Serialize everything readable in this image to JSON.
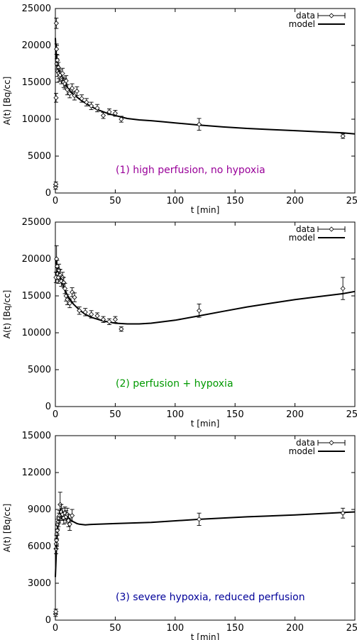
{
  "chart_data": [
    {
      "type": "scatter",
      "xlabel": "t [min]",
      "ylabel": "A(t) [Bq/cc]",
      "xlim": [
        0,
        250
      ],
      "ylim": [
        0,
        25000
      ],
      "xticks": [
        0,
        50,
        100,
        150,
        200,
        250
      ],
      "xtick_labels": [
        "0",
        "50",
        "100",
        "150",
        "200",
        "250"
      ],
      "yticks": [
        0,
        5000,
        10000,
        15000,
        20000,
        25000
      ],
      "ytick_labels": [
        "0",
        "5000",
        "10000",
        "15000",
        "20000",
        "25000"
      ],
      "legend": {
        "position": "top-right",
        "entries": [
          "data",
          "model"
        ]
      },
      "annotation": {
        "text": "(1) high perfusion, no hypoxia",
        "color": "#990099"
      },
      "series": [
        {
          "name": "data",
          "style": "points-with-errorbars",
          "x": [
            0.2,
            0.4,
            0.6,
            0.8,
            1.0,
            1.3,
            1.6,
            2.0,
            2.5,
            3,
            3.5,
            4,
            5,
            6,
            7,
            8,
            9,
            10,
            12,
            14,
            16,
            18,
            22,
            26,
            30,
            35,
            40,
            45,
            50,
            55,
            120,
            240
          ],
          "y": [
            800,
            1200,
            12900,
            23000,
            19500,
            17500,
            18000,
            16500,
            17000,
            16200,
            15800,
            16000,
            15500,
            16200,
            15000,
            14800,
            15200,
            14000,
            13500,
            14200,
            13200,
            13800,
            12800,
            12300,
            11800,
            11500,
            10500,
            11000,
            10800,
            10000,
            9300,
            7700
          ],
          "err": [
            300,
            300,
            600,
            700,
            700,
            700,
            700,
            700,
            700,
            700,
            700,
            700,
            700,
            700,
            700,
            700,
            700,
            700,
            600,
            600,
            600,
            600,
            500,
            500,
            500,
            500,
            400,
            400,
            400,
            400,
            800,
            300
          ]
        },
        {
          "name": "model",
          "style": "line",
          "x": [
            0,
            1,
            2,
            4,
            6,
            8,
            10,
            14,
            18,
            22,
            26,
            30,
            35,
            40,
            45,
            50,
            55,
            60,
            70,
            80,
            90,
            100,
            120,
            140,
            160,
            180,
            200,
            220,
            240,
            250
          ],
          "y": [
            21000,
            17800,
            16800,
            16000,
            15300,
            14800,
            14300,
            13500,
            13000,
            12500,
            12100,
            11700,
            11300,
            11000,
            10700,
            10500,
            10300,
            10100,
            9900,
            9800,
            9650,
            9500,
            9200,
            8950,
            8750,
            8600,
            8450,
            8300,
            8150,
            8000
          ]
        }
      ]
    },
    {
      "type": "scatter",
      "xlabel": "t [min]",
      "ylabel": "A(t) [Bq/cc]",
      "xlim": [
        0,
        250
      ],
      "ylim": [
        0,
        25000
      ],
      "xticks": [
        0,
        50,
        100,
        150,
        200,
        250
      ],
      "xtick_labels": [
        "0",
        "50",
        "100",
        "150",
        "200",
        "250"
      ],
      "yticks": [
        0,
        5000,
        10000,
        15000,
        20000,
        25000
      ],
      "ytick_labels": [
        "0",
        "5000",
        "10000",
        "15000",
        "20000",
        "25000"
      ],
      "legend": {
        "position": "top-right",
        "entries": [
          "data",
          "model"
        ]
      },
      "annotation": {
        "text": "(2) perfusion + hypoxia",
        "color": "#009900"
      },
      "series": [
        {
          "name": "data",
          "style": "points-with-errorbars",
          "x": [
            0.5,
            1,
            1.5,
            2,
            2.5,
            3,
            4,
            5,
            6,
            7,
            8,
            9,
            10,
            12,
            14,
            16,
            20,
            25,
            30,
            35,
            40,
            45,
            50,
            55,
            120,
            240
          ],
          "y": [
            17500,
            20000,
            19000,
            18000,
            17500,
            18500,
            17800,
            17000,
            17500,
            16800,
            16000,
            15000,
            14500,
            14000,
            15500,
            14800,
            13000,
            12800,
            12500,
            12300,
            11800,
            11500,
            11800,
            10500,
            13000,
            16000
          ],
          "err": [
            700,
            1800,
            800,
            800,
            800,
            800,
            800,
            700,
            700,
            700,
            700,
            700,
            700,
            600,
            600,
            600,
            500,
            500,
            500,
            400,
            400,
            400,
            400,
            300,
            900,
            1500
          ]
        },
        {
          "name": "model",
          "style": "line",
          "x": [
            0,
            2,
            4,
            6,
            8,
            10,
            15,
            20,
            25,
            30,
            40,
            50,
            60,
            70,
            80,
            90,
            100,
            120,
            140,
            160,
            180,
            200,
            220,
            240,
            250
          ],
          "y": [
            20000,
            18500,
            17500,
            16600,
            15800,
            15100,
            13900,
            13100,
            12500,
            12100,
            11600,
            11300,
            11200,
            11200,
            11300,
            11500,
            11700,
            12300,
            12900,
            13500,
            14000,
            14500,
            14900,
            15300,
            15600
          ]
        }
      ]
    },
    {
      "type": "scatter",
      "xlabel": "t [min]",
      "ylabel": "A(t) [Bq/cc]",
      "xlim": [
        0,
        250
      ],
      "ylim": [
        0,
        15000
      ],
      "xticks": [
        0,
        50,
        100,
        150,
        200,
        250
      ],
      "xtick_labels": [
        "0",
        "50",
        "100",
        "150",
        "200",
        "250"
      ],
      "yticks": [
        0,
        3000,
        6000,
        9000,
        12000,
        15000
      ],
      "ytick_labels": [
        "0",
        "3000",
        "6000",
        "9000",
        "12000",
        "15000"
      ],
      "legend": {
        "position": "top-right",
        "entries": [
          "data",
          "model"
        ]
      },
      "annotation": {
        "text": "(3) severe hypoxia, reduced perfusion",
        "color": "#000099"
      },
      "series": [
        {
          "name": "data",
          "style": "points-with-errorbars",
          "x": [
            0.2,
            0.4,
            0.6,
            0.8,
            1.0,
            1.3,
            1.6,
            2.0,
            2.5,
            3,
            3.5,
            4,
            5,
            6,
            7,
            8,
            9,
            10,
            11,
            12,
            14,
            120,
            240
          ],
          "y": [
            500,
            700,
            5800,
            6200,
            6500,
            7000,
            7300,
            7800,
            8000,
            8300,
            8500,
            9400,
            8800,
            8600,
            8300,
            8700,
            8400,
            8600,
            8100,
            7800,
            8500,
            8200,
            8700
          ],
          "err": [
            200,
            200,
            400,
            400,
            400,
            400,
            400,
            400,
            400,
            400,
            400,
            1000,
            600,
            500,
            500,
            500,
            500,
            500,
            500,
            500,
            500,
            500,
            400
          ]
        },
        {
          "name": "model",
          "style": "line",
          "x": [
            0,
            1,
            2,
            3,
            4,
            5,
            6,
            8,
            10,
            12,
            15,
            18,
            20,
            25,
            30,
            50,
            80,
            120,
            160,
            200,
            240,
            250
          ],
          "y": [
            3500,
            6000,
            7500,
            8500,
            9000,
            8900,
            8800,
            8600,
            8400,
            8200,
            8000,
            7850,
            7800,
            7750,
            7780,
            7850,
            7950,
            8200,
            8400,
            8550,
            8750,
            8800
          ]
        }
      ]
    }
  ]
}
